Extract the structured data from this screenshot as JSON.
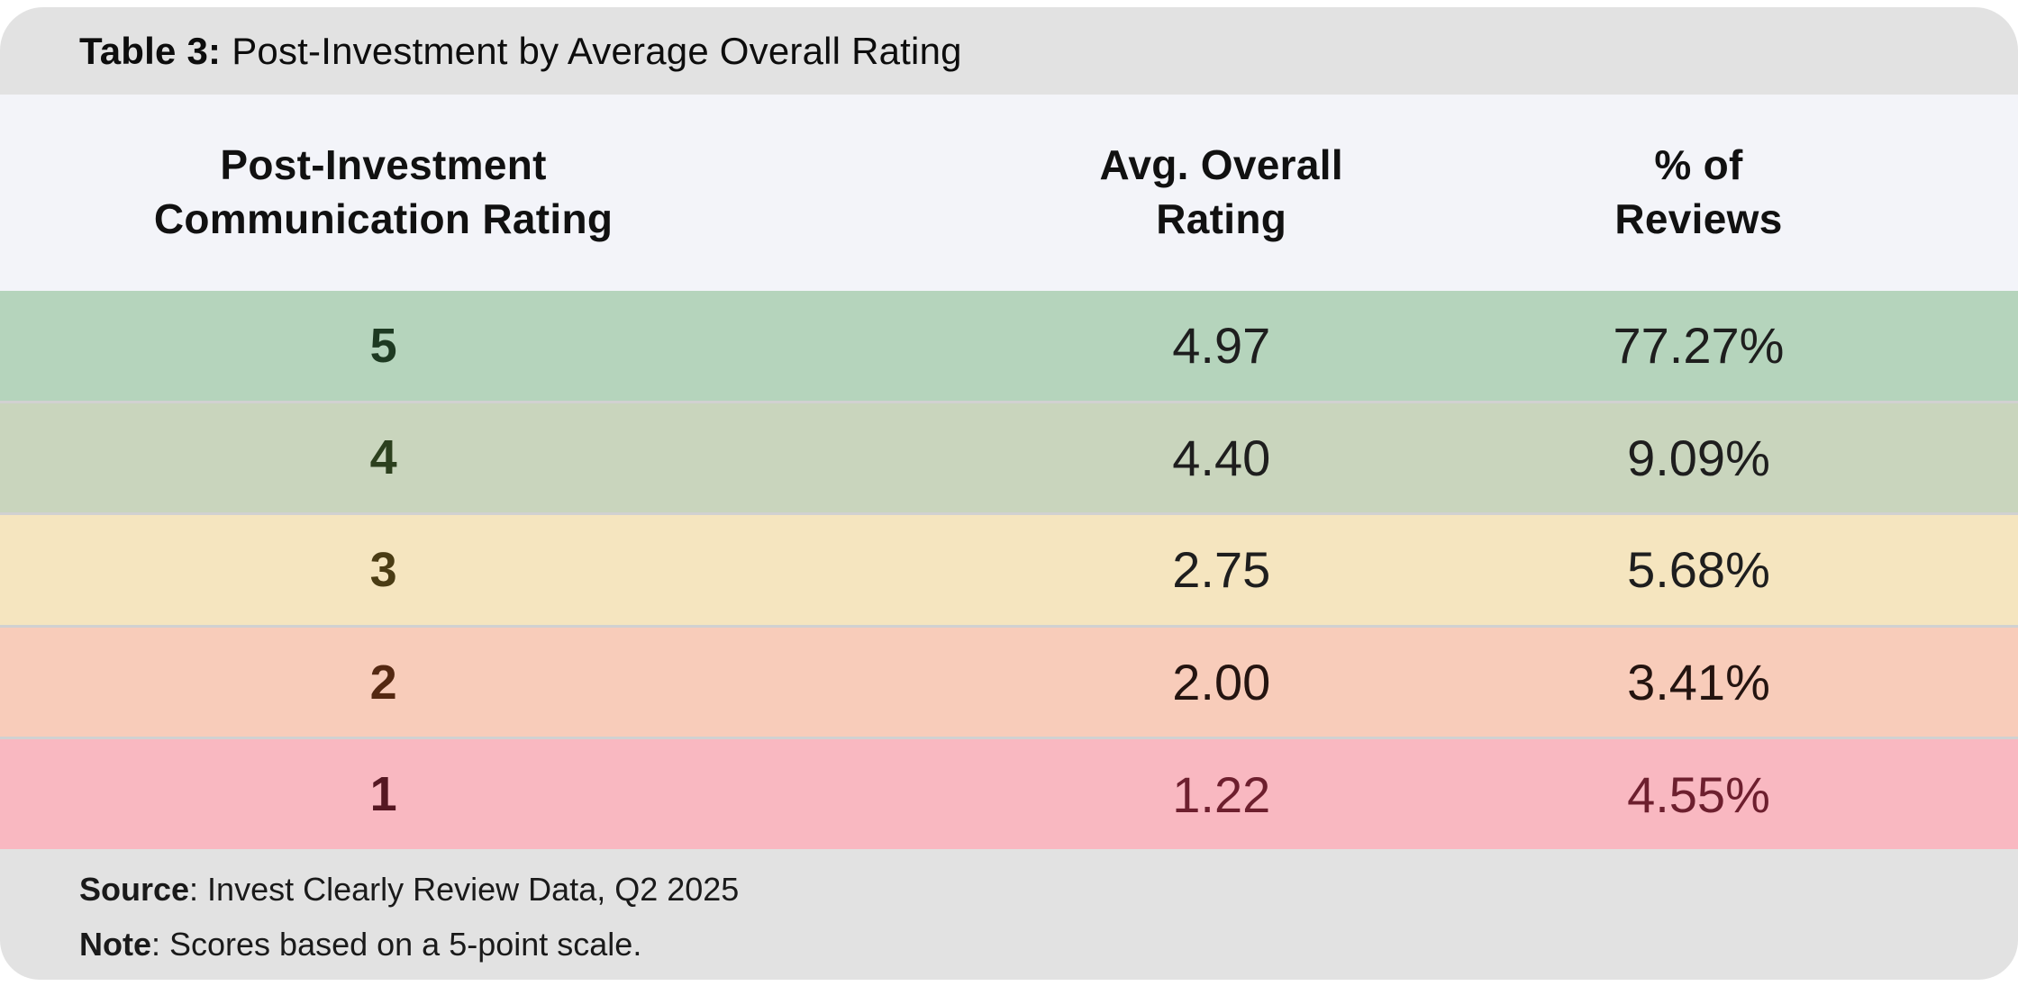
{
  "title": {
    "label": "Table 3:",
    "text": "Post-Investment by Average Overall Rating"
  },
  "header": {
    "col1_line1": "Post-Investment",
    "col1_line2": "Communication Rating",
    "col2_line1": "Avg. Overall",
    "col2_line2": "Rating",
    "col3_line1": "% of",
    "col3_line2": "Reviews"
  },
  "rows": [
    {
      "rating": "5",
      "avg": "4.97",
      "pct": "77.27%",
      "bg": "#b5d4bc",
      "rating_color": "#1e3a22",
      "value_color": "#1e1e1e"
    },
    {
      "rating": "4",
      "avg": "4.40",
      "pct": "9.09%",
      "bg": "#c9d5bd",
      "rating_color": "#2c401e",
      "value_color": "#1e1e1e"
    },
    {
      "rating": "3",
      "avg": "2.75",
      "pct": "5.68%",
      "bg": "#f5e5bf",
      "rating_color": "#4a3c14",
      "value_color": "#1e1e1e"
    },
    {
      "rating": "2",
      "avg": "2.00",
      "pct": "3.41%",
      "bg": "#f8ccba",
      "rating_color": "#542812",
      "value_color": "#241410"
    },
    {
      "rating": "1",
      "avg": "1.22",
      "pct": "4.55%",
      "bg": "#f9b8c1",
      "rating_color": "#551722",
      "value_color": "#6d1f2e"
    }
  ],
  "footer": {
    "source_label": "Source",
    "source_rest": ": Invest Clearly Review Data, Q2 2025",
    "note_label": "Note",
    "note_rest": ": Scores based on a 5-point scale."
  },
  "colors": {
    "title_bar_bg": "#e2e2e2",
    "header_row_bg": "#f3f4f9",
    "footer_bg": "#e2e2e2",
    "row_separator": "#d1d1d1"
  },
  "chart_data": {
    "type": "table",
    "title": "Table 3: Post-Investment by Average Overall Rating",
    "columns": [
      "Post-Investment Communication Rating",
      "Avg. Overall Rating",
      "% of Reviews"
    ],
    "rows": [
      [
        "5",
        4.97,
        "77.27%"
      ],
      [
        "4",
        4.4,
        "9.09%"
      ],
      [
        "3",
        2.75,
        "5.68%"
      ],
      [
        "2",
        2.0,
        "3.41%"
      ],
      [
        "1",
        1.22,
        "4.55%"
      ]
    ],
    "row_colors": [
      "#b5d4bc",
      "#c9d5bd",
      "#f5e5bf",
      "#f8ccba",
      "#f9b8c1"
    ],
    "source": "Invest Clearly Review Data, Q2 2025",
    "note": "Scores based on a 5-point scale."
  }
}
